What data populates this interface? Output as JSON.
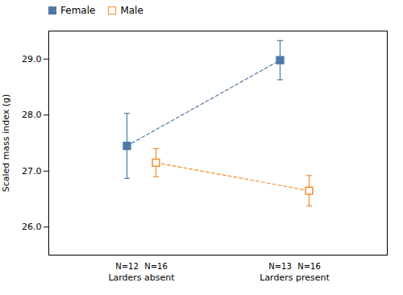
{
  "chart_data": {
    "type": "errorbar",
    "ylabel": "Scaled mass index (g)",
    "categories": [
      "Larders absent",
      "Larders present"
    ],
    "series": [
      {
        "name": "Female",
        "values": [
          27.45,
          28.98
        ],
        "errors": [
          0.58,
          0.35
        ],
        "n_labels": [
          "N=12",
          "N=13"
        ],
        "marker": "square",
        "line_style": "dashed"
      },
      {
        "name": "Male",
        "values": [
          27.15,
          26.65
        ],
        "errors": [
          0.25,
          0.27
        ],
        "n_labels": [
          "N=16",
          "N=16"
        ],
        "marker": "open square",
        "line_style": "dashed"
      }
    ],
    "ylim": [
      25.5,
      29.5
    ],
    "yticks": [
      26,
      27,
      28,
      29
    ],
    "grid": false,
    "legend": "upper left"
  }
}
